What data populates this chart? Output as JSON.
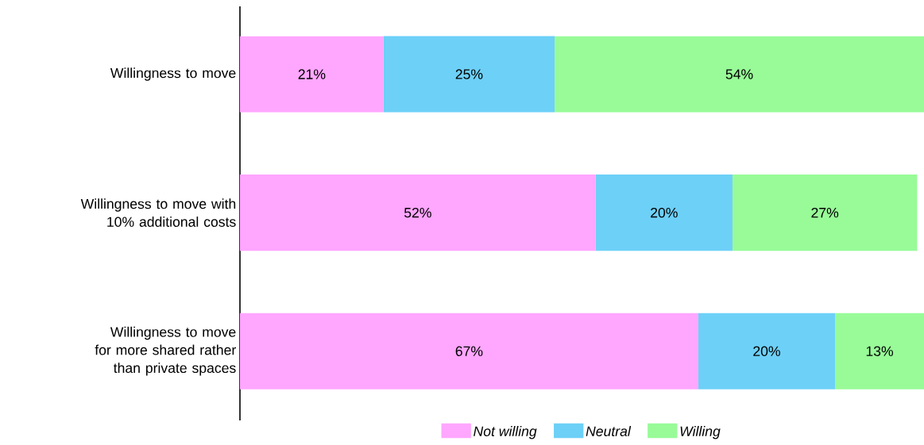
{
  "chart_data": {
    "type": "bar",
    "orientation": "horizontal",
    "stacked": true,
    "categories": [
      "Willingness to move",
      "Willingness to move with 10% additional costs",
      "Willingness to move for more shared rather than private spaces"
    ],
    "series": [
      {
        "name": "Not willing",
        "color": "#ffa6ff",
        "values": [
          21,
          52,
          67
        ],
        "value_labels": [
          "21%",
          "52%",
          "67%"
        ]
      },
      {
        "name": "Neutral",
        "color": "#6dd0f7",
        "values": [
          25,
          20,
          20
        ],
        "value_labels": [
          "25%",
          "20%",
          "20%"
        ]
      },
      {
        "name": "Willing",
        "color": "#98fb98",
        "values": [
          54,
          27,
          13
        ],
        "value_labels": [
          "54%",
          "27%",
          "13%"
        ]
      }
    ],
    "xlim": [
      0,
      100
    ],
    "tick_labels": "y",
    "legend": "bottom",
    "grid": false
  }
}
